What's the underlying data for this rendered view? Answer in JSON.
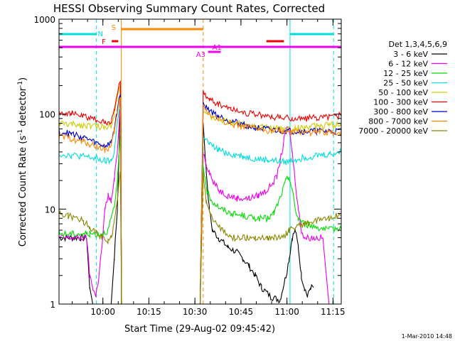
{
  "chart_data": {
    "type": "line",
    "title": "HESSI Observing Summary Count Rates, Corrected",
    "xlabel": "Start Time (29-Aug-02 09:45:42)",
    "ylabel_main": "Corrected Count Rate (s",
    "ylabel_sup1": "-1",
    "ylabel_mid": " detector",
    "ylabel_sup2": "-1",
    "ylabel_end": ")",
    "footer": "1-Mar-2010 14:48",
    "y_scale": "log",
    "ylim": [
      1,
      1000
    ],
    "xlim_minutes": [
      0,
      92
    ],
    "x_ticks": [
      {
        "m": 14.3,
        "label": "10:00"
      },
      {
        "m": 29.3,
        "label": "10:15"
      },
      {
        "m": 44.3,
        "label": "10:30"
      },
      {
        "m": 59.3,
        "label": "10:45"
      },
      {
        "m": 74.3,
        "label": "11:00"
      },
      {
        "m": 89.3,
        "label": "11:15"
      }
    ],
    "y_ticks": [
      {
        "v": 1,
        "label": "1"
      },
      {
        "v": 10,
        "label": "10"
      },
      {
        "v": 100,
        "label": "100"
      },
      {
        "v": 1000,
        "label": "1000"
      }
    ],
    "legend_title": "Det 1,3,4,5,6,9",
    "legend_position": "right",
    "series": [
      {
        "name": "3 - 6 keV",
        "color": "#000000",
        "points": [
          [
            0,
            5
          ],
          [
            9,
            5
          ],
          [
            10,
            1.5
          ],
          [
            11,
            1
          ],
          [
            12,
            1
          ],
          [
            17,
            1
          ],
          [
            18,
            3
          ],
          [
            19,
            10
          ],
          [
            19.6,
            40
          ],
          [
            20,
            200
          ],
          [
            20.4,
            1
          ],
          [
            46,
            1
          ],
          [
            47,
            80
          ],
          [
            48,
            25
          ],
          [
            49,
            10
          ],
          [
            50,
            6
          ],
          [
            52,
            5
          ],
          [
            55,
            4
          ],
          [
            58,
            3.5
          ],
          [
            60,
            3
          ],
          [
            62,
            2.5
          ],
          [
            64,
            2
          ],
          [
            66,
            1.5
          ],
          [
            69,
            1.2
          ],
          [
            72,
            1.1
          ],
          [
            74,
            2
          ],
          [
            75,
            3
          ],
          [
            76,
            5
          ],
          [
            77,
            6
          ],
          [
            78,
            4
          ],
          [
            79,
            2
          ],
          [
            80,
            1.5
          ],
          [
            81,
            1.2
          ],
          [
            82,
            1.5
          ],
          [
            83,
            1.5
          ]
        ]
      },
      {
        "name": "6 - 12 keV",
        "color": "#ee00ee",
        "points": [
          [
            0,
            5
          ],
          [
            9,
            5
          ],
          [
            10,
            2
          ],
          [
            11,
            1.5
          ],
          [
            12,
            1.2
          ],
          [
            13,
            2
          ],
          [
            14,
            4
          ],
          [
            15,
            10
          ],
          [
            16,
            14
          ],
          [
            17,
            12
          ],
          [
            18,
            20
          ],
          [
            19,
            40
          ],
          [
            19.6,
            80
          ],
          [
            20,
            150
          ],
          [
            20.4,
            1
          ],
          [
            46,
            1
          ],
          [
            47,
            40
          ],
          [
            48,
            30
          ],
          [
            49,
            25
          ],
          [
            50,
            20
          ],
          [
            52,
            16
          ],
          [
            55,
            14
          ],
          [
            58,
            13
          ],
          [
            62,
            13
          ],
          [
            65,
            14
          ],
          [
            68,
            16
          ],
          [
            71,
            22
          ],
          [
            73,
            45
          ],
          [
            74,
            70
          ],
          [
            75,
            70
          ],
          [
            76,
            40
          ],
          [
            77,
            20
          ],
          [
            78,
            10
          ],
          [
            79,
            6
          ],
          [
            80,
            5
          ],
          [
            83,
            5
          ],
          [
            86,
            5
          ],
          [
            88,
            1
          ],
          [
            92,
            1
          ]
        ]
      },
      {
        "name": "12 - 25 keV",
        "color": "#00dd00",
        "points": [
          [
            0,
            5.5
          ],
          [
            9,
            5.5
          ],
          [
            10,
            5.5
          ],
          [
            14,
            5.5
          ],
          [
            16,
            6
          ],
          [
            17,
            8
          ],
          [
            18,
            10
          ],
          [
            19,
            20
          ],
          [
            19.6,
            40
          ],
          [
            20,
            60
          ],
          [
            20.4,
            1
          ],
          [
            46,
            1
          ],
          [
            47,
            30
          ],
          [
            48,
            16
          ],
          [
            50,
            12
          ],
          [
            53,
            10
          ],
          [
            56,
            9
          ],
          [
            60,
            8.5
          ],
          [
            64,
            8
          ],
          [
            68,
            8
          ],
          [
            70,
            9
          ],
          [
            72,
            13
          ],
          [
            74,
            20
          ],
          [
            75,
            22
          ],
          [
            76,
            16
          ],
          [
            77,
            10
          ],
          [
            78,
            8
          ],
          [
            80,
            7
          ],
          [
            84,
            6.5
          ],
          [
            88,
            6
          ],
          [
            92,
            6.5
          ]
        ]
      },
      {
        "name": "25 - 50 keV",
        "color": "#00dddd",
        "points": [
          [
            0,
            38
          ],
          [
            4,
            37
          ],
          [
            8,
            36
          ],
          [
            12,
            34
          ],
          [
            15,
            32
          ],
          [
            17,
            32
          ],
          [
            18,
            40
          ],
          [
            19,
            80
          ],
          [
            19.6,
            110
          ],
          [
            20,
            120
          ],
          [
            20.4,
            1
          ],
          [
            46,
            1
          ],
          [
            47,
            60
          ],
          [
            49,
            48
          ],
          [
            52,
            42
          ],
          [
            56,
            38
          ],
          [
            60,
            36
          ],
          [
            64,
            34
          ],
          [
            68,
            33
          ],
          [
            72,
            32
          ],
          [
            74,
            31
          ],
          [
            76,
            33
          ],
          [
            80,
            35
          ],
          [
            84,
            37
          ],
          [
            88,
            38
          ],
          [
            92,
            40
          ]
        ]
      },
      {
        "name": "50 - 100 keV",
        "color": "#cccc00",
        "points": [
          [
            0,
            80
          ],
          [
            4,
            78
          ],
          [
            8,
            77
          ],
          [
            12,
            75
          ],
          [
            15,
            73
          ],
          [
            17,
            78
          ],
          [
            18,
            100
          ],
          [
            19,
            150
          ],
          [
            19.6,
            190
          ],
          [
            20,
            200
          ],
          [
            20.4,
            1
          ],
          [
            46,
            1
          ],
          [
            47,
            110
          ],
          [
            49,
            95
          ],
          [
            52,
            88
          ],
          [
            56,
            82
          ],
          [
            60,
            78
          ],
          [
            64,
            75
          ],
          [
            68,
            72
          ],
          [
            72,
            70
          ],
          [
            76,
            70
          ],
          [
            80,
            72
          ],
          [
            84,
            75
          ],
          [
            88,
            77
          ],
          [
            92,
            78
          ]
        ]
      },
      {
        "name": "100 - 300 keV",
        "color": "#ee0000",
        "points": [
          [
            0,
            105
          ],
          [
            4,
            102
          ],
          [
            8,
            95
          ],
          [
            12,
            88
          ],
          [
            15,
            80
          ],
          [
            17,
            85
          ],
          [
            18,
            110
          ],
          [
            19,
            160
          ],
          [
            19.6,
            210
          ],
          [
            20,
            220
          ],
          [
            20.4,
            1
          ],
          [
            46,
            1
          ],
          [
            47,
            165
          ],
          [
            49,
            145
          ],
          [
            52,
            128
          ],
          [
            56,
            115
          ],
          [
            60,
            105
          ],
          [
            64,
            100
          ],
          [
            68,
            95
          ],
          [
            72,
            92
          ],
          [
            76,
            90
          ],
          [
            80,
            90
          ],
          [
            84,
            92
          ],
          [
            88,
            95
          ],
          [
            92,
            97
          ]
        ]
      },
      {
        "name": "300 - 800 keV",
        "color": "#0000cc",
        "points": [
          [
            0,
            65
          ],
          [
            4,
            62
          ],
          [
            8,
            57
          ],
          [
            12,
            50
          ],
          [
            15,
            46
          ],
          [
            17,
            50
          ],
          [
            18,
            70
          ],
          [
            19,
            110
          ],
          [
            19.6,
            150
          ],
          [
            20,
            160
          ],
          [
            20.4,
            1
          ],
          [
            46,
            1
          ],
          [
            47,
            125
          ],
          [
            49,
            110
          ],
          [
            52,
            95
          ],
          [
            56,
            85
          ],
          [
            60,
            78
          ],
          [
            64,
            72
          ],
          [
            68,
            69
          ],
          [
            72,
            67
          ],
          [
            76,
            66
          ],
          [
            80,
            66
          ],
          [
            84,
            66
          ],
          [
            88,
            66
          ],
          [
            92,
            66
          ]
        ]
      },
      {
        "name": "800 - 7000 keV",
        "color": "#ff8800",
        "points": [
          [
            0,
            58
          ],
          [
            4,
            55
          ],
          [
            8,
            51
          ],
          [
            12,
            46
          ],
          [
            15,
            42
          ],
          [
            17,
            45
          ],
          [
            18,
            65
          ],
          [
            19,
            100
          ],
          [
            19.6,
            140
          ],
          [
            20,
            150
          ],
          [
            20.4,
            1
          ],
          [
            46,
            1
          ],
          [
            47,
            120
          ],
          [
            49,
            100
          ],
          [
            52,
            88
          ],
          [
            56,
            80
          ],
          [
            60,
            74
          ],
          [
            64,
            70
          ],
          [
            68,
            67
          ],
          [
            72,
            66
          ],
          [
            76,
            65
          ],
          [
            80,
            65
          ],
          [
            84,
            64
          ],
          [
            88,
            64
          ],
          [
            92,
            64
          ]
        ]
      },
      {
        "name": "7000 - 20000 keV",
        "color": "#888800",
        "points": [
          [
            0,
            9
          ],
          [
            3,
            8.5
          ],
          [
            6,
            8
          ],
          [
            8,
            7.5
          ],
          [
            10,
            6.5
          ],
          [
            12,
            6
          ],
          [
            14,
            5
          ],
          [
            16,
            4.5
          ],
          [
            17,
            5
          ],
          [
            18,
            7
          ],
          [
            19,
            12
          ],
          [
            19.6,
            20
          ],
          [
            20,
            25
          ],
          [
            20.4,
            1
          ],
          [
            46,
            1
          ],
          [
            47,
            25
          ],
          [
            48,
            12
          ],
          [
            50,
            8
          ],
          [
            53,
            6
          ],
          [
            56,
            5
          ],
          [
            60,
            5
          ],
          [
            64,
            5
          ],
          [
            68,
            5
          ],
          [
            72,
            5
          ],
          [
            74,
            5.5
          ],
          [
            75,
            6
          ],
          [
            77,
            6.5
          ],
          [
            80,
            7
          ],
          [
            84,
            7.5
          ],
          [
            88,
            8
          ],
          [
            92,
            9
          ]
        ]
      }
    ],
    "vertical_lines": [
      {
        "m": 12.2,
        "color": "#00dddd",
        "style": "dashed"
      },
      {
        "m": 20.3,
        "color": "#ff8800",
        "style": "solid"
      },
      {
        "m": 47.0,
        "color": "#ff8800",
        "style": "dashed"
      },
      {
        "m": 75.3,
        "color": "#00dddd",
        "style": "solid"
      },
      {
        "m": 89.5,
        "color": "#00dddd",
        "style": "dashed"
      }
    ],
    "flag_bars": [
      {
        "label": "N",
        "color": "#00dddd",
        "segments": [
          [
            0,
            12.2
          ],
          [
            75.3,
            89.5
          ]
        ],
        "y": 48,
        "label_m": 13.5,
        "label_dy": -1
      },
      {
        "label": "S",
        "color": "#ff8800",
        "segments": [
          [
            20.3,
            47.0
          ]
        ],
        "y": 41,
        "label_m": 17.8,
        "label_dy": -3
      },
      {
        "label": "F",
        "color": "#ee0000",
        "segments": [
          [
            17.2,
            19.3
          ],
          [
            67.6,
            73.3
          ]
        ],
        "y": 58,
        "label_m": 14.6,
        "label_dy": 0
      },
      {
        "label": "A1",
        "color": "#ee00ee",
        "segments": [
          [
            0,
            92
          ]
        ],
        "y": 66,
        "label_m": 51.5,
        "label_dy": 0
      },
      {
        "label": "A3",
        "color": "#ee00ee",
        "segments": [
          [
            48.6,
            52.7
          ]
        ],
        "y": 73,
        "label_m": 46.2,
        "label_dy": 3
      }
    ]
  }
}
